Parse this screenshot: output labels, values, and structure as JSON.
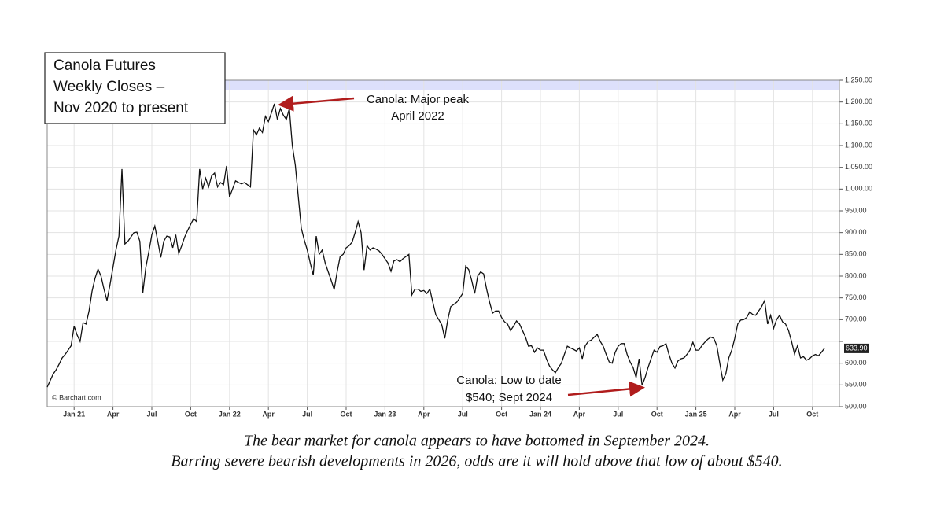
{
  "chart_data": {
    "type": "line",
    "title_lines": [
      "Canola Futures",
      "Weekly Closes –",
      "Nov 2020 to present"
    ],
    "source": "© Barchart.com",
    "annotations": [
      [
        "Canola: Major peak",
        "April 2022"
      ],
      [
        "Canola: Low to date",
        "$540; Sept 2024"
      ]
    ],
    "caption": [
      "The bear market for canola appears to have bottomed in September 2024.",
      "Barring severe bearish developments in 2026, odds are it will hold above that low of about $540."
    ],
    "last_label": "633.90",
    "color": "#111111",
    "grid": true,
    "ylim": [
      500,
      1250
    ],
    "yticks": [
      {
        "value": 500,
        "label": "500.00"
      },
      {
        "value": 550,
        "label": "550.00"
      },
      {
        "value": 600,
        "label": "600.00"
      },
      {
        "value": 650,
        "label": ""
      },
      {
        "value": 700,
        "label": "700.00"
      },
      {
        "value": 750,
        "label": "750.00"
      },
      {
        "value": 800,
        "label": "800.00"
      },
      {
        "value": 850,
        "label": "850.00"
      },
      {
        "value": 900,
        "label": "900.00"
      },
      {
        "value": 950,
        "label": "950.00"
      },
      {
        "value": 1000,
        "label": "1,000.00"
      },
      {
        "value": 1050,
        "label": "1,050.00"
      },
      {
        "value": 1100,
        "label": "1,100.00"
      },
      {
        "value": 1150,
        "label": "1,150.00"
      },
      {
        "value": 1200,
        "label": "1,200.00"
      },
      {
        "value": 1250,
        "label": "1,250.00"
      }
    ],
    "categories": [
      null,
      null,
      null,
      null,
      null,
      null,
      null,
      null,
      null,
      "Jan 21",
      null,
      null,
      null,
      null,
      null,
      null,
      null,
      null,
      null,
      null,
      null,
      null,
      "Apr",
      null,
      null,
      null,
      null,
      null,
      null,
      null,
      null,
      null,
      null,
      null,
      null,
      "Jul",
      null,
      null,
      null,
      null,
      null,
      null,
      null,
      null,
      null,
      null,
      null,
      null,
      "Oct",
      null,
      null,
      null,
      null,
      null,
      null,
      null,
      null,
      null,
      null,
      null,
      null,
      "Jan 22",
      null,
      null,
      null,
      null,
      null,
      null,
      null,
      null,
      null,
      null,
      null,
      null,
      "Apr",
      null,
      null,
      null,
      null,
      null,
      null,
      null,
      null,
      null,
      null,
      null,
      null,
      "Jul",
      null,
      null,
      null,
      null,
      null,
      null,
      null,
      null,
      null,
      null,
      null,
      null,
      "Oct",
      null,
      null,
      null,
      null,
      null,
      null,
      null,
      null,
      null,
      null,
      null,
      null,
      "Jan 23",
      null,
      null,
      null,
      null,
      null,
      null,
      null,
      null,
      null,
      null,
      null,
      null,
      "Apr",
      null,
      null,
      null,
      null,
      null,
      null,
      null,
      null,
      null,
      null,
      null,
      null,
      "Jul",
      null,
      null,
      null,
      null,
      null,
      null,
      null,
      null,
      null,
      null,
      null,
      null,
      "Oct",
      null,
      null,
      null,
      null,
      null,
      null,
      null,
      null,
      null,
      null,
      null,
      null,
      "Jan 24",
      null,
      null,
      null,
      null,
      null,
      null,
      null,
      null,
      null,
      null,
      null,
      null,
      "Apr",
      null,
      null,
      null,
      null,
      null,
      null,
      null,
      null,
      null,
      null,
      null,
      null,
      "Jul",
      null,
      null,
      null,
      null,
      null,
      null,
      null,
      null,
      null,
      null,
      null,
      null,
      "Oct",
      null,
      null,
      null,
      null,
      null,
      null,
      null,
      null,
      null,
      null,
      null,
      null,
      "Jan 25",
      null,
      null,
      null,
      null,
      null,
      null,
      null,
      null,
      null,
      null,
      null,
      null,
      "Apr",
      null,
      null,
      null,
      null,
      null,
      null,
      null,
      null,
      null,
      null,
      null,
      null,
      "Jul",
      null,
      null,
      null,
      null,
      null,
      null,
      null,
      null,
      null,
      null,
      null,
      null,
      "Oct",
      null,
      null,
      null,
      null
    ],
    "values": [
      545,
      560,
      575,
      585,
      598,
      612,
      620,
      630,
      640,
      685,
      665,
      650,
      693,
      690,
      720,
      765,
      795,
      816,
      800,
      770,
      744,
      780,
      820,
      860,
      892,
      1046,
      874,
      880,
      890,
      900,
      901,
      880,
      762,
      820,
      856,
      895,
      915,
      880,
      843,
      880,
      892,
      890,
      865,
      895,
      852,
      870,
      890,
      905,
      919,
      932,
      925,
      1046,
      1000,
      1025,
      1005,
      1030,
      1037,
      1005,
      1015,
      1010,
      1053,
      982,
      1000,
      1019,
      1015,
      1012,
      1015,
      1010,
      1005,
      1136,
      1125,
      1140,
      1130,
      1167,
      1155,
      1175,
      1196,
      1160,
      1185,
      1170,
      1160,
      1185,
      1100,
      1055,
      982,
      910,
      883,
      860,
      830,
      802,
      892,
      850,
      860,
      830,
      810,
      790,
      769,
      810,
      845,
      850,
      865,
      870,
      878,
      900,
      925,
      900,
      814,
      870,
      860,
      865,
      862,
      858,
      850,
      840,
      830,
      811,
      835,
      838,
      833,
      840,
      845,
      850,
      757,
      770,
      770,
      765,
      767,
      760,
      770,
      740,
      711,
      700,
      688,
      657,
      700,
      730,
      735,
      740,
      750,
      760,
      823,
      815,
      790,
      760,
      800,
      810,
      805,
      770,
      740,
      715,
      720,
      720,
      705,
      695,
      690,
      675,
      685,
      697,
      690,
      675,
      660,
      639,
      640,
      625,
      635,
      630,
      630,
      610,
      594,
      585,
      578,
      590,
      600,
      620,
      639,
      635,
      632,
      628,
      635,
      610,
      640,
      650,
      653,
      660,
      666,
      650,
      639,
      620,
      603,
      600,
      625,
      639,
      645,
      645,
      620,
      603,
      590,
      567,
      610,
      549,
      567,
      590,
      610,
      630,
      625,
      638,
      640,
      645,
      620,
      600,
      589,
      605,
      610,
      612,
      620,
      630,
      648,
      630,
      630,
      640,
      648,
      655,
      660,
      657,
      640,
      600,
      561,
      575,
      612,
      630,
      657,
      690,
      699,
      700,
      705,
      718,
      712,
      710,
      720,
      730,
      744,
      690,
      710,
      680,
      700,
      710,
      695,
      690,
      675,
      650,
      621,
      640,
      612,
      615,
      607,
      610,
      617,
      620,
      617,
      625,
      633.9
    ]
  }
}
